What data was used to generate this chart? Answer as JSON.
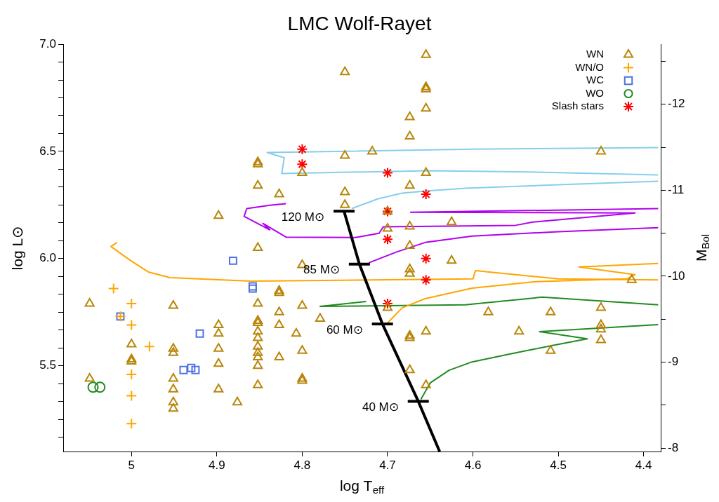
{
  "chart_data": {
    "type": "scatter",
    "title": "LMC Wolf-Rayet",
    "xlabel": "log T$_{eff}$",
    "ylabel": "log L⊙",
    "y2label": "M$_{Bol}$",
    "xlim": [
      5.08,
      4.38
    ],
    "ylim": [
      5.1,
      7.0
    ],
    "y2lim": [
      -7.96,
      -12.7
    ],
    "xticks": [
      5,
      4.9,
      4.8,
      4.7,
      4.6,
      4.5,
      4.4
    ],
    "yticks": [
      {
        "value": 5.167,
        "label": null
      },
      {
        "value": 5.25,
        "label": null
      },
      {
        "value": 5.333,
        "label": null
      },
      {
        "value": 5.417,
        "label": null
      },
      {
        "value": 5.5,
        "label": "5.5"
      },
      {
        "value": 5.583,
        "label": null
      },
      {
        "value": 5.667,
        "label": null
      },
      {
        "value": 5.75,
        "label": null
      },
      {
        "value": 5.833,
        "label": null
      },
      {
        "value": 5.917,
        "label": null
      },
      {
        "value": 6,
        "label": "6.0"
      },
      {
        "value": 6.083,
        "label": null
      },
      {
        "value": 6.167,
        "label": null
      },
      {
        "value": 6.25,
        "label": null
      },
      {
        "value": 6.333,
        "label": null
      },
      {
        "value": 6.417,
        "label": null
      },
      {
        "value": 6.5,
        "label": "6.5"
      },
      {
        "value": 6.583,
        "label": null
      },
      {
        "value": 6.667,
        "label": null
      },
      {
        "value": 6.75,
        "label": null
      },
      {
        "value": 6.833,
        "label": null
      },
      {
        "value": 6.917,
        "label": null
      },
      {
        "value": 7,
        "label": "7.0"
      }
    ],
    "y2ticks": [
      -8,
      {
        "value": -8.5,
        "label": null
      },
      -9,
      {
        "value": -9.5,
        "label": null
      },
      -10,
      {
        "value": -10.5,
        "label": null
      },
      -11,
      {
        "value": -11.5,
        "label": null
      },
      -12,
      {
        "value": -12.5,
        "label": null
      }
    ],
    "legend": "top right",
    "annotations": [
      {
        "text": "120 M⊙",
        "x": 4.751,
        "y": 6.221
      },
      {
        "text": "85 M⊙",
        "x": 4.733,
        "y": 5.974
      },
      {
        "text": "60 M⊙",
        "x": 4.706,
        "y": 5.695
      },
      {
        "text": "40 M⊙",
        "x": 4.664,
        "y": 5.334
      }
    ],
    "series": [
      {
        "name": "WN",
        "type": "scatter",
        "marker": "triangle",
        "color": "#b8860b",
        "x": [
          4.655,
          4.75,
          4.655,
          4.655,
          4.655,
          4.674,
          4.674,
          4.718,
          4.75,
          4.852,
          4.852,
          4.45,
          4.8,
          4.655,
          4.852,
          4.674,
          4.75,
          4.827,
          4.75,
          4.7,
          4.898,
          4.625,
          4.674,
          4.7,
          4.674,
          4.852,
          4.625,
          4.8,
          4.674,
          4.674,
          4.414,
          4.827,
          4.827,
          4.852,
          5.049,
          4.951,
          4.8,
          4.7,
          4.582,
          4.509,
          4.45,
          4.827,
          4.779,
          4.852,
          4.852,
          4.898,
          4.827,
          4.45,
          4.45,
          4.852,
          4.655,
          4.546,
          4.898,
          4.807,
          4.674,
          4.674,
          4.852,
          4.45,
          5.0,
          4.852,
          4.951,
          4.898,
          4.8,
          4.509,
          4.951,
          4.852,
          4.827,
          4.852,
          5.0,
          5.0,
          4.898,
          4.852,
          4.674,
          5.049,
          4.951,
          4.8,
          4.8,
          4.655,
          4.852,
          4.898,
          4.951,
          4.951,
          4.876,
          4.951
        ],
        "values": [
          6.95,
          6.87,
          6.8,
          6.79,
          6.7,
          6.66,
          6.57,
          6.5,
          6.48,
          6.45,
          6.44,
          6.5,
          6.4,
          6.4,
          6.34,
          6.34,
          6.31,
          6.3,
          6.25,
          6.22,
          6.2,
          6.17,
          6.15,
          6.14,
          6.06,
          6.05,
          5.99,
          5.97,
          5.95,
          5.93,
          5.9,
          5.85,
          5.84,
          5.79,
          5.79,
          5.78,
          5.78,
          5.77,
          5.75,
          5.75,
          5.77,
          5.75,
          5.72,
          5.71,
          5.7,
          5.69,
          5.69,
          5.69,
          5.67,
          5.66,
          5.66,
          5.66,
          5.65,
          5.65,
          5.64,
          5.63,
          5.63,
          5.62,
          5.6,
          5.59,
          5.58,
          5.58,
          5.57,
          5.57,
          5.56,
          5.56,
          5.54,
          5.54,
          5.53,
          5.52,
          5.51,
          5.5,
          5.48,
          5.44,
          5.44,
          5.44,
          5.43,
          5.41,
          5.41,
          5.39,
          5.39,
          5.33,
          5.33,
          5.3
        ]
      },
      {
        "name": "WN/O",
        "type": "scatter",
        "marker": "cross",
        "color": "#ffa500",
        "x": [
          5.021,
          5.0,
          5.013,
          5.0,
          4.979,
          5.0,
          5.0,
          5.0
        ],
        "values": [
          5.86,
          5.79,
          5.73,
          5.69,
          5.59,
          5.46,
          5.36,
          5.23
        ]
      },
      {
        "name": "WC",
        "type": "scatter",
        "marker": "square",
        "color": "#4f72e3",
        "x": [
          4.881,
          4.858,
          4.858,
          5.013,
          4.92,
          4.93,
          4.939,
          4.925
        ],
        "values": [
          5.99,
          5.87,
          5.86,
          5.73,
          5.65,
          5.49,
          5.48,
          5.48
        ]
      },
      {
        "name": "WO",
        "type": "scatter",
        "marker": "circle",
        "color": "#228b22",
        "x": [
          5.045,
          5.037
        ],
        "values": [
          5.4,
          5.4
        ]
      },
      {
        "name": "Slash stars",
        "type": "scatter",
        "color": "#ff0000",
        "x": [
          4.8,
          4.8,
          4.7,
          4.655,
          4.7,
          4.7,
          4.655,
          4.655,
          4.7
        ],
        "values": [
          6.51,
          6.44,
          6.4,
          6.3,
          6.22,
          6.09,
          6.0,
          5.9,
          5.79
        ]
      },
      {
        "type": "line",
        "marker": "none",
        "color": "#000000",
        "x": [
          4.751,
          4.733,
          4.706,
          4.664,
          4.639
        ],
        "values": [
          6.221,
          5.974,
          5.695,
          5.334,
          5.1
        ]
      },
      {
        "type": "line",
        "marker": "none",
        "color": "#87ceeb",
        "x": [
          4.742,
          4.711,
          4.683,
          4.656,
          4.609,
          4.5,
          4.383,
          null,
          4.383,
          4.55,
          4.65,
          4.824,
          4.821,
          4.841,
          4.6,
          4.383
        ],
        "values": [
          6.233,
          6.279,
          6.305,
          6.315,
          6.328,
          6.344,
          6.361,
          null,
          6.39,
          6.405,
          6.41,
          6.397,
          6.47,
          6.495,
          6.51,
          6.518
        ]
      },
      {
        "type": "line",
        "marker": "none",
        "color": "#b000f0",
        "x": [
          4.722,
          4.69,
          4.656,
          4.601,
          4.5,
          4.383,
          null,
          4.383,
          4.673,
          4.41,
          4.53,
          4.55,
          4.705,
          4.71,
          4.738,
          4.819,
          4.846,
          4.838,
          4.868,
          4.865,
          4.838,
          4.819
        ],
        "values": [
          5.98,
          6.03,
          6.075,
          6.105,
          6.125,
          6.144,
          null,
          6.233,
          6.216,
          6.213,
          6.17,
          6.155,
          6.148,
          6.118,
          6.098,
          6.1,
          6.164,
          6.134,
          6.197,
          6.233,
          6.249,
          6.256
        ]
      },
      {
        "type": "line",
        "marker": "none",
        "color": "#ffa500",
        "x": [
          4.7,
          4.683,
          4.656,
          4.601,
          4.527,
          4.42,
          4.41,
          4.476,
          4.383,
          null,
          4.383,
          4.5,
          4.597,
          4.6,
          4.86,
          4.955,
          4.98,
          5.002,
          5.024,
          5.017
        ],
        "values": [
          5.7,
          5.77,
          5.813,
          5.862,
          5.892,
          5.905,
          5.925,
          5.961,
          5.977,
          null,
          5.9,
          5.905,
          5.944,
          5.905,
          5.895,
          5.911,
          5.937,
          5.993,
          6.056,
          6.075
        ]
      },
      {
        "type": "line",
        "marker": "none",
        "color": "#228b22",
        "x": [
          4.661,
          4.65,
          4.628,
          4.601,
          4.554,
          4.509,
          4.466,
          4.522,
          4.383,
          null,
          4.383,
          4.519,
          4.609,
          4.779,
          4.725
        ],
        "values": [
          5.344,
          5.42,
          5.479,
          5.518,
          5.557,
          5.593,
          5.626,
          5.659,
          5.692,
          null,
          5.784,
          5.82,
          5.784,
          5.777,
          5.8
        ]
      }
    ]
  }
}
